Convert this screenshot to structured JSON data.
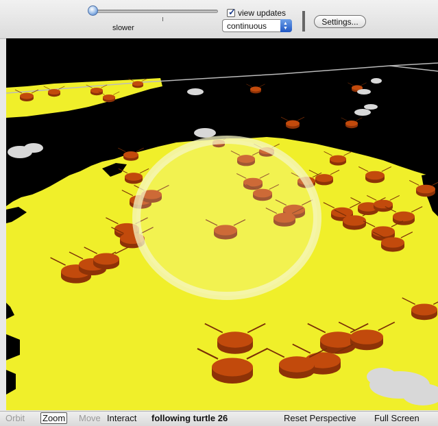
{
  "toolbar": {
    "speed_label": "slower",
    "speed_value": 0,
    "view_updates_label": "view updates",
    "view_updates_checked": true,
    "update_mode": "continuous",
    "settings_label": "Settings..."
  },
  "controls": {
    "orbit": "Orbit",
    "zoom": "Zoom",
    "move": "Move",
    "interact": "Interact",
    "status": "following turtle 26",
    "reset": "Reset Perspective",
    "fullscreen": "Full Screen"
  },
  "colors": {
    "patch": "#f0ef2a",
    "background": "#000000",
    "turtle": "#c24a0c",
    "turtle_gray": "#d8d8d8",
    "focus_ring": "#f6f6c4"
  }
}
